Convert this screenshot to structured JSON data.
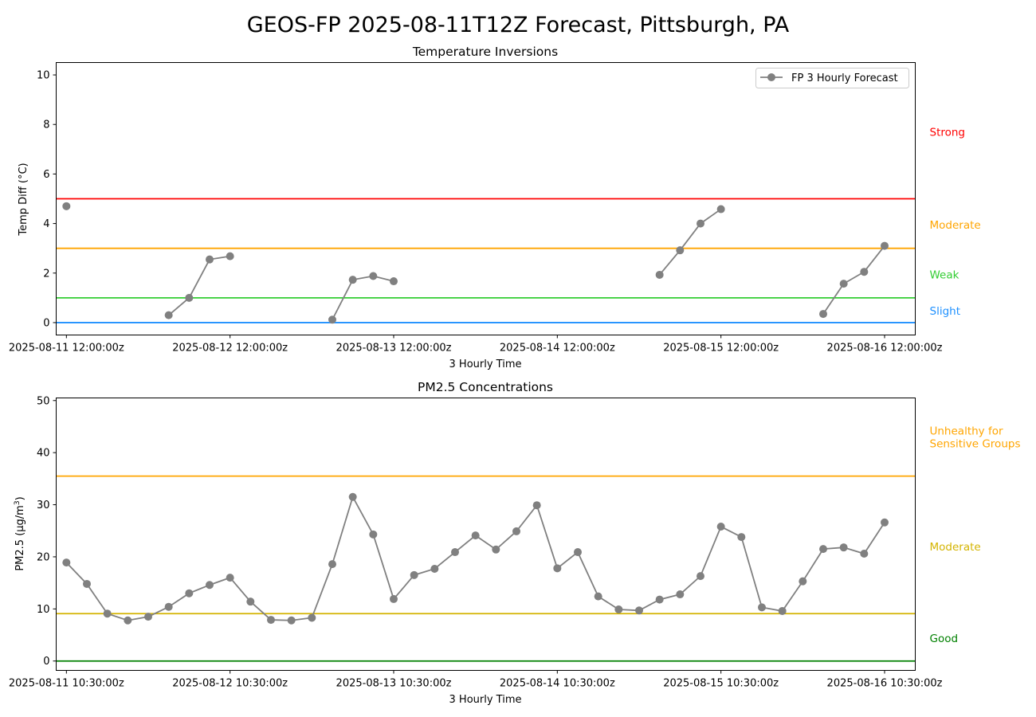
{
  "figure": {
    "title": "GEOS-FP 2025-08-11T12Z Forecast, Pittsburgh, PA"
  },
  "chart_data": [
    {
      "type": "line",
      "title": "Temperature Inversions",
      "xlabel": "3 Hourly Time",
      "ylabel": "Temp Diff (°C)",
      "ylim": [
        -0.5,
        10.5
      ],
      "xlim": [
        "2025-08-11T10:30:00Z",
        "2025-08-16T16:30:00Z"
      ],
      "x_ticks": [
        "2025-08-11 12:00:00z",
        "2025-08-12 12:00:00z",
        "2025-08-13 12:00:00z",
        "2025-08-14 12:00:00z",
        "2025-08-15 12:00:00z",
        "2025-08-16 12:00:00z"
      ],
      "y_ticks": [
        0,
        2,
        4,
        6,
        8,
        10
      ],
      "legend": {
        "position": "top-right",
        "entries": [
          "FP 3 Hourly Forecast"
        ]
      },
      "thresholds": [
        {
          "value": 0,
          "color": "#1e90ff"
        },
        {
          "value": 1,
          "color": "#32cd32"
        },
        {
          "value": 3,
          "color": "#ffa500"
        },
        {
          "value": 5,
          "color": "#ff0000"
        }
      ],
      "zone_labels": [
        {
          "text": "Strong",
          "y": 7.7,
          "color": "#ff0000"
        },
        {
          "text": "Moderate",
          "y": 3.95,
          "color": "#ffa500"
        },
        {
          "text": "Weak",
          "y": 1.95,
          "color": "#32cd32"
        },
        {
          "text": "Slight",
          "y": 0.48,
          "color": "#1e90ff"
        }
      ],
      "series": [
        {
          "name": "FP 3 Hourly Forecast",
          "color": "#808080",
          "points": [
            {
              "x": "2025-08-11T12:00:00Z",
              "y": 4.7
            },
            {
              "x": "2025-08-11T15:00:00Z",
              "y": null
            },
            {
              "x": "2025-08-11T18:00:00Z",
              "y": null
            },
            {
              "x": "2025-08-11T21:00:00Z",
              "y": null
            },
            {
              "x": "2025-08-12T00:00:00Z",
              "y": null
            },
            {
              "x": "2025-08-12T03:00:00Z",
              "y": 0.3
            },
            {
              "x": "2025-08-12T06:00:00Z",
              "y": 1.0
            },
            {
              "x": "2025-08-12T09:00:00Z",
              "y": 2.55
            },
            {
              "x": "2025-08-12T12:00:00Z",
              "y": 2.68
            },
            {
              "x": "2025-08-12T15:00:00Z",
              "y": null
            },
            {
              "x": "2025-08-12T18:00:00Z",
              "y": null
            },
            {
              "x": "2025-08-12T21:00:00Z",
              "y": null
            },
            {
              "x": "2025-08-13T00:00:00Z",
              "y": null
            },
            {
              "x": "2025-08-13T03:00:00Z",
              "y": 0.12
            },
            {
              "x": "2025-08-13T06:00:00Z",
              "y": 1.73
            },
            {
              "x": "2025-08-13T09:00:00Z",
              "y": 1.88
            },
            {
              "x": "2025-08-13T12:00:00Z",
              "y": 1.67
            },
            {
              "x": "2025-08-13T15:00:00Z",
              "y": null
            },
            {
              "x": "2025-08-13T18:00:00Z",
              "y": null
            },
            {
              "x": "2025-08-13T21:00:00Z",
              "y": null
            },
            {
              "x": "2025-08-14T00:00:00Z",
              "y": null
            },
            {
              "x": "2025-08-14T03:00:00Z",
              "y": null
            },
            {
              "x": "2025-08-14T06:00:00Z",
              "y": null
            },
            {
              "x": "2025-08-14T09:00:00Z",
              "y": null
            },
            {
              "x": "2025-08-14T12:00:00Z",
              "y": null
            },
            {
              "x": "2025-08-14T15:00:00Z",
              "y": null
            },
            {
              "x": "2025-08-14T18:00:00Z",
              "y": null
            },
            {
              "x": "2025-08-14T21:00:00Z",
              "y": null
            },
            {
              "x": "2025-08-15T00:00:00Z",
              "y": null
            },
            {
              "x": "2025-08-15T03:00:00Z",
              "y": 1.93
            },
            {
              "x": "2025-08-15T06:00:00Z",
              "y": 2.92
            },
            {
              "x": "2025-08-15T09:00:00Z",
              "y": 4.0
            },
            {
              "x": "2025-08-15T12:00:00Z",
              "y": 4.58
            },
            {
              "x": "2025-08-15T15:00:00Z",
              "y": null
            },
            {
              "x": "2025-08-15T18:00:00Z",
              "y": null
            },
            {
              "x": "2025-08-15T21:00:00Z",
              "y": null
            },
            {
              "x": "2025-08-16T00:00:00Z",
              "y": null
            },
            {
              "x": "2025-08-16T03:00:00Z",
              "y": 0.35
            },
            {
              "x": "2025-08-16T06:00:00Z",
              "y": 1.57
            },
            {
              "x": "2025-08-16T09:00:00Z",
              "y": 2.05
            },
            {
              "x": "2025-08-16T12:00:00Z",
              "y": 3.1
            }
          ]
        }
      ]
    },
    {
      "type": "line",
      "title": "PM2.5 Concentrations",
      "xlabel": "3 Hourly Time",
      "ylabel_parts": [
        "PM2.5 (µg/m",
        "3",
        ")"
      ],
      "ylim": [
        -1.8,
        50.5
      ],
      "xlim": [
        "2025-08-11T09:00:00Z",
        "2025-08-16T15:00:00Z"
      ],
      "x_ticks": [
        "2025-08-11 10:30:00z",
        "2025-08-12 10:30:00z",
        "2025-08-13 10:30:00z",
        "2025-08-14 10:30:00z",
        "2025-08-15 10:30:00z",
        "2025-08-16 10:30:00z"
      ],
      "y_ticks": [
        0,
        10,
        20,
        30,
        40,
        50
      ],
      "thresholds": [
        {
          "value": 0,
          "color": "#008000"
        },
        {
          "value": 9.1,
          "color": "#d4b400"
        },
        {
          "value": 35.5,
          "color": "#ffa500"
        }
      ],
      "zone_labels": [
        {
          "text": "Unhealthy for",
          "y": 44.2,
          "color": "#ffa500"
        },
        {
          "text": "Sensitive Groups",
          "y": 41.8,
          "color": "#ffa500"
        },
        {
          "text": "Moderate",
          "y": 22.0,
          "color": "#d4b400"
        },
        {
          "text": "Good",
          "y": 4.4,
          "color": "#008000"
        }
      ],
      "series": [
        {
          "name": "FP 3 Hourly Forecast",
          "color": "#808080",
          "points": [
            {
              "x": "2025-08-11T10:30:00Z",
              "y": 18.9
            },
            {
              "x": "2025-08-11T13:30:00Z",
              "y": 14.8
            },
            {
              "x": "2025-08-11T16:30:00Z",
              "y": 9.1
            },
            {
              "x": "2025-08-11T19:30:00Z",
              "y": 7.8
            },
            {
              "x": "2025-08-11T22:30:00Z",
              "y": 8.5
            },
            {
              "x": "2025-08-12T01:30:00Z",
              "y": 10.4
            },
            {
              "x": "2025-08-12T04:30:00Z",
              "y": 13.0
            },
            {
              "x": "2025-08-12T07:30:00Z",
              "y": 14.6
            },
            {
              "x": "2025-08-12T10:30:00Z",
              "y": 16.0
            },
            {
              "x": "2025-08-12T13:30:00Z",
              "y": 11.4
            },
            {
              "x": "2025-08-12T16:30:00Z",
              "y": 7.9
            },
            {
              "x": "2025-08-12T19:30:00Z",
              "y": 7.8
            },
            {
              "x": "2025-08-12T22:30:00Z",
              "y": 8.3
            },
            {
              "x": "2025-08-13T01:30:00Z",
              "y": 18.6
            },
            {
              "x": "2025-08-13T04:30:00Z",
              "y": 31.5
            },
            {
              "x": "2025-08-13T07:30:00Z",
              "y": 24.3
            },
            {
              "x": "2025-08-13T10:30:00Z",
              "y": 11.9
            },
            {
              "x": "2025-08-13T13:30:00Z",
              "y": 16.5
            },
            {
              "x": "2025-08-13T16:30:00Z",
              "y": 17.7
            },
            {
              "x": "2025-08-13T19:30:00Z",
              "y": 20.9
            },
            {
              "x": "2025-08-13T22:30:00Z",
              "y": 24.1
            },
            {
              "x": "2025-08-14T01:30:00Z",
              "y": 21.4
            },
            {
              "x": "2025-08-14T04:30:00Z",
              "y": 24.9
            },
            {
              "x": "2025-08-14T07:30:00Z",
              "y": 29.9
            },
            {
              "x": "2025-08-14T10:30:00Z",
              "y": 17.8
            },
            {
              "x": "2025-08-14T13:30:00Z",
              "y": 20.9
            },
            {
              "x": "2025-08-14T16:30:00Z",
              "y": 12.4
            },
            {
              "x": "2025-08-14T19:30:00Z",
              "y": 9.9
            },
            {
              "x": "2025-08-14T22:30:00Z",
              "y": 9.7
            },
            {
              "x": "2025-08-15T01:30:00Z",
              "y": 11.8
            },
            {
              "x": "2025-08-15T04:30:00Z",
              "y": 12.8
            },
            {
              "x": "2025-08-15T07:30:00Z",
              "y": 16.3
            },
            {
              "x": "2025-08-15T10:30:00Z",
              "y": 25.8
            },
            {
              "x": "2025-08-15T13:30:00Z",
              "y": 23.8
            },
            {
              "x": "2025-08-15T16:30:00Z",
              "y": 10.3
            },
            {
              "x": "2025-08-15T19:30:00Z",
              "y": 9.6
            },
            {
              "x": "2025-08-15T22:30:00Z",
              "y": 15.3
            },
            {
              "x": "2025-08-16T01:30:00Z",
              "y": 21.5
            },
            {
              "x": "2025-08-16T04:30:00Z",
              "y": 21.8
            },
            {
              "x": "2025-08-16T07:30:00Z",
              "y": 20.6
            },
            {
              "x": "2025-08-16T10:30:00Z",
              "y": 26.6
            }
          ]
        }
      ]
    }
  ]
}
